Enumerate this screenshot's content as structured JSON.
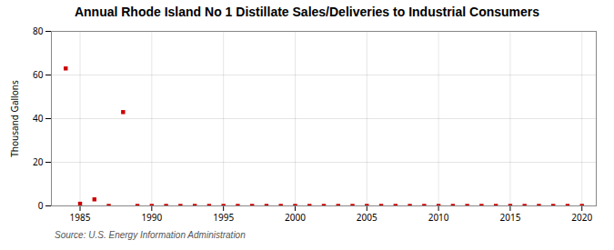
{
  "chart_data": {
    "type": "scatter",
    "title": "Annual Rhode Island No 1 Distillate Sales/Deliveries to Industrial Consumers",
    "ylabel": "Thousand Gallons",
    "source": "Source: U.S. Energy Information Administration",
    "x": [
      1984,
      1985,
      1986,
      1987,
      1988,
      1989,
      1990,
      1991,
      1992,
      1993,
      1994,
      1995,
      1996,
      1997,
      1998,
      1999,
      2000,
      2001,
      2002,
      2003,
      2004,
      2005,
      2006,
      2007,
      2008,
      2009,
      2010,
      2011,
      2012,
      2013,
      2014,
      2015,
      2016,
      2017,
      2018,
      2019,
      2020
    ],
    "values": [
      63,
      1,
      3,
      0,
      43,
      0,
      0,
      0,
      0,
      0,
      0,
      0,
      0,
      0,
      0,
      0,
      0,
      0,
      0,
      0,
      0,
      0,
      0,
      0,
      0,
      0,
      0,
      0,
      0,
      0,
      0,
      0,
      0,
      0,
      0,
      0,
      0
    ],
    "color": "#cc0000",
    "marker": "square",
    "xlim": [
      1983,
      2021
    ],
    "xticks": [
      1985,
      1990,
      1995,
      2000,
      2005,
      2010,
      2015,
      2020
    ],
    "ylim": [
      0,
      80
    ],
    "yticks": [
      0,
      20,
      40,
      60,
      80
    ],
    "grid": true
  }
}
